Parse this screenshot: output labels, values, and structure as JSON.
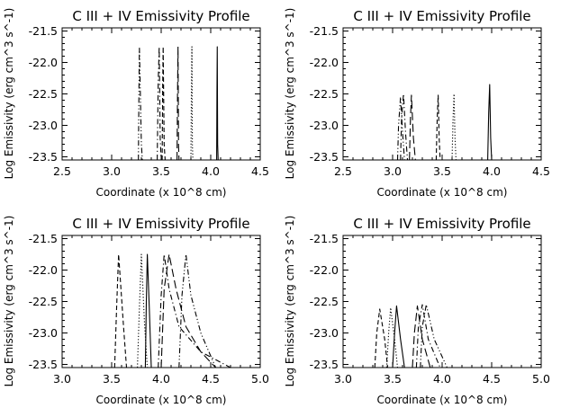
{
  "chart_data": [
    {
      "type": "line",
      "title": "C III + IV Emissivity Profile",
      "xlabel": "Coordinate (x 10^8 cm)",
      "ylabel": "Log Emissivity (erg cm^3 s^-1)",
      "xlim": [
        2.5,
        4.5
      ],
      "ylim": [
        -23.55,
        -21.45
      ],
      "xticks": [
        "2.5",
        "3.0",
        "3.5",
        "4.0",
        "4.5"
      ],
      "yticks": [
        "-21.5",
        "-22.0",
        "-22.5",
        "-23.0",
        "-23.5"
      ],
      "series": [
        {
          "style": "dashdotdot",
          "x": [
            3.27,
            3.275,
            3.28,
            3.3,
            3.31
          ],
          "y": [
            -23.55,
            -22.5,
            -21.75,
            -23.3,
            -23.55
          ]
        },
        {
          "style": "dashdot",
          "x": [
            3.46,
            3.47,
            3.48,
            3.49,
            3.5
          ],
          "y": [
            -23.55,
            -22.3,
            -21.75,
            -23.2,
            -23.55
          ]
        },
        {
          "style": "dashed",
          "x": [
            3.51,
            3.515,
            3.52,
            3.53,
            3.54
          ],
          "y": [
            -23.55,
            -22.4,
            -21.75,
            -23.3,
            -23.55
          ]
        },
        {
          "style": "longdash",
          "x": [
            3.66,
            3.665,
            3.67,
            3.675,
            3.68
          ],
          "y": [
            -23.55,
            -22.5,
            -21.75,
            -23.3,
            -23.55
          ]
        },
        {
          "style": "dotted",
          "x": [
            3.8,
            3.805,
            3.81,
            3.815,
            3.82
          ],
          "y": [
            -23.55,
            -22.5,
            -21.75,
            -23.3,
            -23.55
          ]
        },
        {
          "style": "solid",
          "x": [
            4.06,
            4.063,
            4.066,
            4.07,
            4.075
          ],
          "y": [
            -23.55,
            -22.5,
            -21.75,
            -23.3,
            -23.55
          ]
        }
      ]
    },
    {
      "type": "line",
      "title": "C III + IV Emissivity Profile",
      "xlabel": "Coordinate (x 10^8 cm)",
      "ylabel": "Log Emissivity (erg cm^3 s^-1)",
      "xlim": [
        2.5,
        4.5
      ],
      "ylim": [
        -23.55,
        -21.45
      ],
      "xticks": [
        "2.5",
        "3.0",
        "3.5",
        "4.0",
        "4.5"
      ],
      "yticks": [
        "-21.5",
        "-22.0",
        "-22.5",
        "-23.0",
        "-23.5"
      ],
      "series": [
        {
          "style": "dashdotdot",
          "x": [
            3.05,
            3.06,
            3.08,
            3.1,
            3.12
          ],
          "y": [
            -23.55,
            -23.0,
            -22.55,
            -23.1,
            -23.55
          ]
        },
        {
          "style": "dashdot",
          "x": [
            3.08,
            3.09,
            3.11,
            3.13,
            3.15
          ],
          "y": [
            -23.55,
            -22.9,
            -22.5,
            -23.1,
            -23.55
          ]
        },
        {
          "style": "longdash",
          "x": [
            3.17,
            3.18,
            3.19,
            3.21,
            3.23
          ],
          "y": [
            -23.55,
            -22.9,
            -22.52,
            -23.2,
            -23.55
          ]
        },
        {
          "style": "dashed",
          "x": [
            3.44,
            3.45,
            3.46,
            3.47,
            3.48
          ],
          "y": [
            -23.55,
            -22.9,
            -22.52,
            -23.2,
            -23.55
          ]
        },
        {
          "style": "dotted",
          "x": [
            3.6,
            3.61,
            3.62,
            3.63,
            3.64
          ],
          "y": [
            -23.55,
            -22.9,
            -22.5,
            -23.2,
            -23.55
          ]
        },
        {
          "style": "solid",
          "x": [
            3.96,
            3.97,
            3.98,
            3.99,
            4.0
          ],
          "y": [
            -23.55,
            -22.8,
            -22.35,
            -23.2,
            -23.55
          ]
        }
      ]
    },
    {
      "type": "line",
      "title": "C III + IV Emissivity Profile",
      "xlabel": "Coordinate (x 10^8 cm)",
      "ylabel": "Log Emissivity (erg cm^3 s^-1)",
      "xlim": [
        3.0,
        5.0
      ],
      "ylim": [
        -23.55,
        -21.45
      ],
      "xticks": [
        "3.0",
        "3.5",
        "4.0",
        "4.5",
        "5.0"
      ],
      "yticks": [
        "-21.5",
        "-22.0",
        "-22.5",
        "-23.0",
        "-23.5"
      ],
      "series": [
        {
          "style": "dashed",
          "x": [
            3.53,
            3.55,
            3.57,
            3.62,
            3.65
          ],
          "y": [
            -23.55,
            -22.6,
            -21.75,
            -22.9,
            -23.55
          ]
        },
        {
          "style": "dotted",
          "x": [
            3.76,
            3.78,
            3.8,
            3.83,
            3.86
          ],
          "y": [
            -23.55,
            -22.6,
            -21.75,
            -22.8,
            -23.55
          ]
        },
        {
          "style": "solid",
          "x": [
            3.84,
            3.85,
            3.86,
            3.88,
            3.9
          ],
          "y": [
            -23.55,
            -22.5,
            -21.75,
            -22.6,
            -23.55
          ]
        },
        {
          "style": "dashdot",
          "x": [
            3.97,
            4.0,
            4.03,
            4.08,
            4.18,
            4.4,
            4.7
          ],
          "y": [
            -23.55,
            -22.4,
            -21.75,
            -22.3,
            -22.9,
            -23.3,
            -23.55
          ]
        },
        {
          "style": "longdash",
          "x": [
            4.0,
            4.03,
            4.08,
            4.15,
            4.25,
            4.4,
            4.55
          ],
          "y": [
            -23.55,
            -22.3,
            -21.75,
            -22.3,
            -22.9,
            -23.3,
            -23.55
          ]
        },
        {
          "style": "dashdotdot",
          "x": [
            4.18,
            4.21,
            4.25,
            4.3,
            4.4,
            4.55
          ],
          "y": [
            -23.55,
            -22.4,
            -21.75,
            -22.4,
            -23.0,
            -23.55
          ]
        }
      ]
    },
    {
      "type": "line",
      "title": "C III + IV Emissivity Profile",
      "xlabel": "Coordinate (x 10^8 cm)",
      "ylabel": "Log Emissivity (erg cm^3 s^-1)",
      "xlim": [
        3.0,
        5.0
      ],
      "ylim": [
        -23.55,
        -21.45
      ],
      "xticks": [
        "3.0",
        "3.5",
        "4.0",
        "4.5",
        "5.0"
      ],
      "yticks": [
        "-21.5",
        "-22.0",
        "-22.5",
        "-23.0",
        "-23.5"
      ],
      "series": [
        {
          "style": "dashed",
          "x": [
            3.32,
            3.34,
            3.37,
            3.42,
            3.45
          ],
          "y": [
            -23.55,
            -23.0,
            -22.62,
            -23.1,
            -23.55
          ]
        },
        {
          "style": "dotted",
          "x": [
            3.44,
            3.46,
            3.48,
            3.52,
            3.55
          ],
          "y": [
            -23.55,
            -23.0,
            -22.6,
            -23.1,
            -23.55
          ]
        },
        {
          "style": "solid",
          "x": [
            3.5,
            3.52,
            3.54,
            3.58,
            3.62
          ],
          "y": [
            -23.55,
            -23.0,
            -22.57,
            -23.1,
            -23.55
          ]
        },
        {
          "style": "longdash",
          "x": [
            3.7,
            3.72,
            3.75,
            3.8,
            3.88
          ],
          "y": [
            -23.55,
            -23.0,
            -22.57,
            -23.1,
            -23.55
          ]
        },
        {
          "style": "dashdot",
          "x": [
            3.74,
            3.76,
            3.8,
            3.86,
            3.98
          ],
          "y": [
            -23.55,
            -22.9,
            -22.55,
            -23.1,
            -23.55
          ]
        },
        {
          "style": "dashdotdot",
          "x": [
            3.78,
            3.8,
            3.84,
            3.92,
            4.05
          ],
          "y": [
            -23.55,
            -22.9,
            -22.55,
            -23.1,
            -23.55
          ]
        }
      ]
    }
  ]
}
